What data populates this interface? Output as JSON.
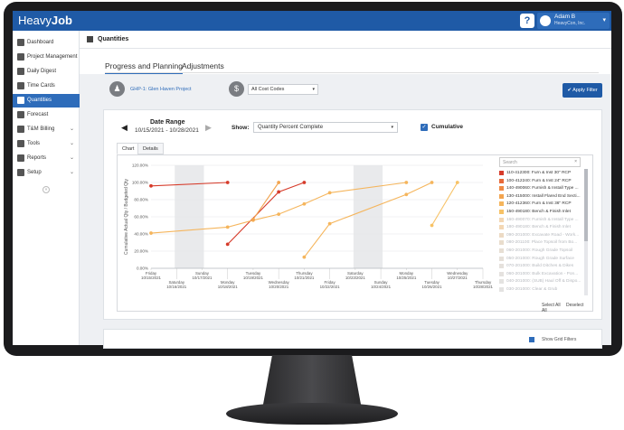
{
  "app": {
    "logo_light": "Heavy",
    "logo_bold": "Job"
  },
  "topbar": {
    "help_label": "?",
    "user_name": "Adam B",
    "user_company": "HeavyCon, Inc."
  },
  "sidebar": {
    "items": [
      {
        "label": "Dashboard",
        "chevron": ""
      },
      {
        "label": "Project Management",
        "chevron": ""
      },
      {
        "label": "Daily Digest",
        "chevron": ""
      },
      {
        "label": "Time Cards",
        "chevron": ""
      },
      {
        "label": "Quantities",
        "chevron": ""
      },
      {
        "label": "Forecast",
        "chevron": ""
      },
      {
        "label": "T&M Billing",
        "chevron": "⌄"
      },
      {
        "label": "Tools",
        "chevron": "⌄"
      },
      {
        "label": "Reports",
        "chevron": "⌄"
      },
      {
        "label": "Setup",
        "chevron": "⌄"
      }
    ],
    "collapse_label": "«"
  },
  "page": {
    "title": "Quantities",
    "tabs": [
      "Progress and Planning",
      "Adjustments"
    ]
  },
  "filters": {
    "project": "GHP-1: Glen Haven Project",
    "cost_codes": "All Cost Codes",
    "apply_label": "✔ Apply Filter"
  },
  "card": {
    "date_range_label": "Date Range",
    "date_range_value": "10/15/2021 - 10/28/2021",
    "show_label": "Show:",
    "show_value": "Quantity Percent Complete",
    "cumulative_label": "Cumulative",
    "chart_tabs": [
      "Chart",
      "Details"
    ]
  },
  "legend": {
    "search_placeholder": "Search",
    "items": [
      {
        "label": "110-412300: Furn & Inst 30\" RCP",
        "color": "#d63b2a",
        "active": true
      },
      {
        "label": "100-412240: Furn & Inst 24\" RCP",
        "color": "#e86a3a",
        "active": true
      },
      {
        "label": "140-490060: Furnish & Install Type ...",
        "color": "#ef8a45",
        "active": true
      },
      {
        "label": "130-415000: Install Flared End Secti...",
        "color": "#f2a44f",
        "active": true
      },
      {
        "label": "120-412360: Furn & Inst 36\" RCP",
        "color": "#f5b55c",
        "active": true
      },
      {
        "label": "150-490180: Bench & Finish Inlet",
        "color": "#f7c266",
        "active": true
      },
      {
        "label": "160-490070: Furnish & Install Type ...",
        "color": "#f3d7b4",
        "active": false
      },
      {
        "label": "180-490180: Bench & Finish Inlet",
        "color": "#f3d7b4",
        "active": false
      },
      {
        "label": "090-201000: Excavate Road - Work...",
        "color": "#ecdac4",
        "active": false
      },
      {
        "label": "080-201100: Place Topsoil from Bo...",
        "color": "#e9ddcd",
        "active": false
      },
      {
        "label": "060-201000: Rough Grade Topsoil",
        "color": "#e7dfd4",
        "active": false
      },
      {
        "label": "050-201000: Rough Grade Surface",
        "color": "#e6e0d9",
        "active": false
      },
      {
        "label": "070-201000: Build Ditches & Dikes",
        "color": "#e5e1dc",
        "active": false
      },
      {
        "label": "060-201000: Bulk Excavation - Pon...",
        "color": "#e5e2df",
        "active": false
      },
      {
        "label": "040-201000: (SUB) Haul Off & Dispo...",
        "color": "#e4e3e1",
        "active": false
      },
      {
        "label": "030-201000: Clear & Grub",
        "color": "#e4e3e2",
        "active": false
      }
    ],
    "select_all": "Select All",
    "deselect_all": "Deselect All"
  },
  "bottom_card": {
    "show_label": "Show Grid Filters"
  },
  "chart_data": {
    "type": "line",
    "title": "",
    "xlabel": "",
    "ylabel": "Cumulative Actual Qty / Budgeted Qty",
    "ylim": [
      0,
      120
    ],
    "ytick_labels": [
      "0.00%",
      "20.00%",
      "40.00%",
      "60.00%",
      "80.00%",
      "100.00%",
      "120.00%"
    ],
    "x": [
      "Friday\n10/15/2021",
      "Saturday\n10/16/2021",
      "Sunday\n10/17/2021",
      "Monday\n10/18/2021",
      "Tuesday\n10/19/2021",
      "Wednesday\n10/20/2021",
      "Thursday\n10/21/2021",
      "Friday\n10/22/2021",
      "Saturday\n10/23/2021",
      "Sunday\n10/24/2021",
      "Monday\n10/25/2021",
      "Tuesday\n10/26/2021",
      "Wednesday\n10/27/2021",
      "Thursday\n10/28/2021"
    ],
    "weekend_shading": [
      "Saturday\n10/16/2021",
      "Sunday\n10/17/2021",
      "Saturday\n10/23/2021",
      "Sunday\n10/24/2021"
    ],
    "series": [
      {
        "color": "#d63b2a",
        "points": [
          [
            0,
            96
          ],
          [
            3,
            100
          ]
        ]
      },
      {
        "color": "#d63b2a",
        "points": [
          [
            3,
            28
          ],
          [
            5,
            89
          ],
          [
            6,
            100
          ]
        ]
      },
      {
        "color": "#f5b55c",
        "points": [
          [
            0,
            41
          ],
          [
            3,
            48
          ],
          [
            4,
            56
          ],
          [
            5,
            63
          ],
          [
            6,
            75
          ],
          [
            7,
            88
          ],
          [
            10,
            100
          ]
        ]
      },
      {
        "color": "#f2a44f",
        "points": [
          [
            4,
            57
          ],
          [
            5,
            100
          ]
        ]
      },
      {
        "color": "#f5b55c",
        "points": [
          [
            6,
            13
          ],
          [
            7,
            52
          ],
          [
            10,
            86
          ],
          [
            11,
            100
          ]
        ]
      },
      {
        "color": "#f7c266",
        "points": [
          [
            11,
            50
          ],
          [
            12,
            100
          ]
        ]
      }
    ]
  }
}
